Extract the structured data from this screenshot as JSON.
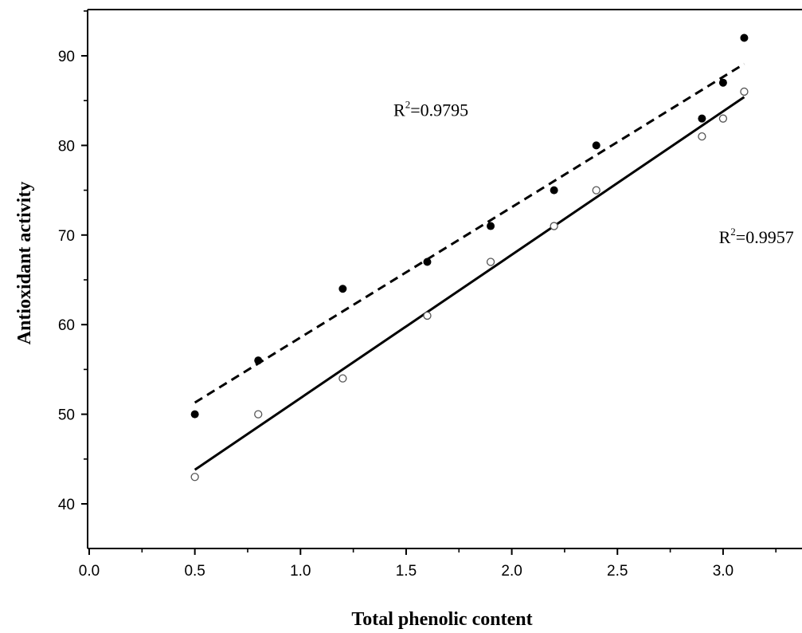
{
  "chart_data": {
    "type": "scatter",
    "title": "",
    "xlabel": "Total phenolic content",
    "ylabel": "Antioxidant activity",
    "xlim": [
      0.0,
      3.3
    ],
    "ylim": [
      35,
      95
    ],
    "x_ticks": [
      "0.0",
      "0.5",
      "1.0",
      "1.5",
      "2.0",
      "2.5",
      "3.0"
    ],
    "y_ticks": [
      "40",
      "50",
      "60",
      "70",
      "80",
      "90"
    ],
    "grid": false,
    "legend": "none",
    "series": [
      {
        "marker": "filled-circle",
        "color": "#000000",
        "x": [
          0.5,
          0.8,
          1.2,
          1.6,
          1.9,
          2.2,
          2.4,
          2.9,
          3.0,
          3.1
        ],
        "y": [
          50,
          56,
          64,
          67,
          71,
          75,
          80,
          83,
          87,
          92
        ],
        "fit": {
          "style": "dashed",
          "x": [
            0.5,
            3.1
          ],
          "y": [
            51.3,
            89.1
          ]
        }
      },
      {
        "marker": "open-circle",
        "color": "#555555",
        "x": [
          0.5,
          0.8,
          1.2,
          1.6,
          1.9,
          2.2,
          2.4,
          2.9,
          3.0,
          3.1
        ],
        "y": [
          43,
          50,
          54,
          61,
          67,
          71,
          75,
          81,
          83,
          86
        ],
        "fit": {
          "style": "solid",
          "x": [
            0.5,
            3.1
          ],
          "y": [
            43.8,
            85.4
          ]
        }
      }
    ],
    "annotations": [
      {
        "base": "R",
        "sup": "2",
        "value": "=0.9795",
        "x": 1.44,
        "y": 83.3
      },
      {
        "base": "R",
        "sup": "2",
        "value": "=0.9957",
        "x": 2.98,
        "y": 69.1
      }
    ]
  }
}
